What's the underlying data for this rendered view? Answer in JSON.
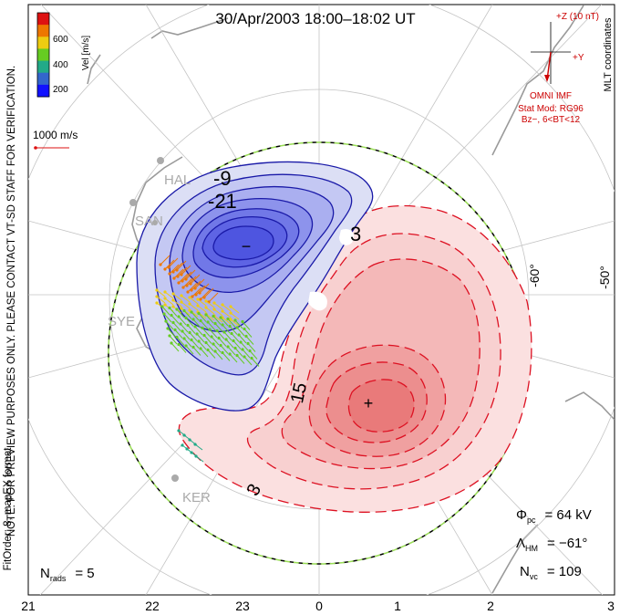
{
  "header": {
    "title": "30/Apr/2003 18:00–18:02 UT"
  },
  "colorbar": {
    "label": "Vel [m/s]",
    "ticks": [
      "600",
      "400",
      "200"
    ],
    "colors": [
      "#dd1111",
      "#ee7700",
      "#eecc11",
      "#66cc22",
      "#22aa88",
      "#3366cc",
      "#1111ff"
    ]
  },
  "coordinates": "MLT coordinates",
  "scale_vector": {
    "label": "1000 m/s"
  },
  "watermark": {
    "line1": "NOTE: FOR PREVIEW PURPOSES ONLY. PLEASE CONTACT VT-SD STAFF FOR VERIFICATION.",
    "line2": "FitOrder: 8, mapEX format"
  },
  "imf": {
    "z_label": "+Z (10 nT)",
    "y_label": "+Y",
    "source": "OMNI IMF",
    "model": "Stat Mod: RG96",
    "condition": "Bz−, 6<BT<12"
  },
  "latitude_labels": [
    "-60°",
    "-50°"
  ],
  "stations": [
    "HAL",
    "SAN",
    "SYE",
    "KER"
  ],
  "contour_labels": [
    "-9",
    "-21",
    "3",
    "15",
    "3"
  ],
  "stats": {
    "phi": {
      "sym": "Φ",
      "sub": "pc",
      "value": "= 64 kV"
    },
    "lambda": {
      "sym": "Λ",
      "sub": "HM",
      "value": "= −61°"
    },
    "nvc": {
      "sym": "N",
      "sub": "vc",
      "value": "= 109"
    },
    "nrads": {
      "sym": "N",
      "sub": "rads",
      "value": "= 5"
    }
  },
  "mlt_axis": [
    "21",
    "22",
    "23",
    "0",
    "1",
    "2",
    "3"
  ],
  "potential_extrema": {
    "min": "−",
    "max": "+"
  }
}
